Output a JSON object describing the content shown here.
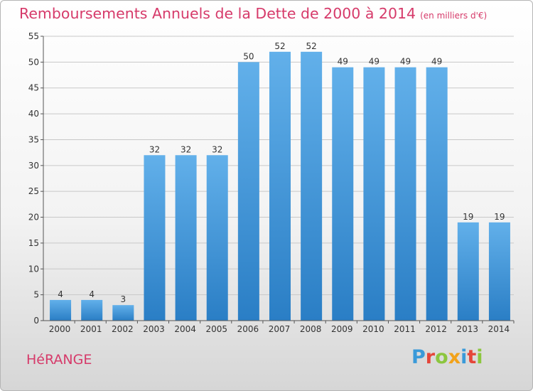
{
  "chart_data": {
    "type": "bar",
    "title": "Remboursements Annuels de la Dette de 2000 à 2014",
    "unit": "(en milliers d'€)",
    "categories": [
      "2000",
      "2001",
      "2002",
      "2003",
      "2004",
      "2005",
      "2006",
      "2007",
      "2008",
      "2009",
      "2010",
      "2011",
      "2012",
      "2013",
      "2014"
    ],
    "values": [
      4,
      4,
      3,
      32,
      32,
      32,
      50,
      52,
      52,
      49,
      49,
      49,
      49,
      19,
      19
    ],
    "ylim": [
      0,
      55
    ],
    "yticks": [
      "0",
      "5",
      "10",
      "15",
      "20",
      "25",
      "30",
      "35",
      "40",
      "45",
      "50",
      "55"
    ],
    "xlabel": "",
    "ylabel": "",
    "grid": true,
    "bar_color_top": "#62b0ea",
    "bar_color_bottom": "#2a7ec5"
  },
  "footer": {
    "commune": "HéRANGE",
    "brand_letters": [
      "P",
      "r",
      "o",
      "x",
      "i",
      "t",
      "i"
    ],
    "brand_colors": [
      "#3a9ad9",
      "#e5463a",
      "#8cc63f",
      "#f2a21a",
      "#3a9ad9",
      "#e5463a",
      "#8cc63f"
    ]
  },
  "colors": {
    "title": "#d63a6a",
    "grid": "#c8c8c8",
    "axis": "#555555"
  }
}
